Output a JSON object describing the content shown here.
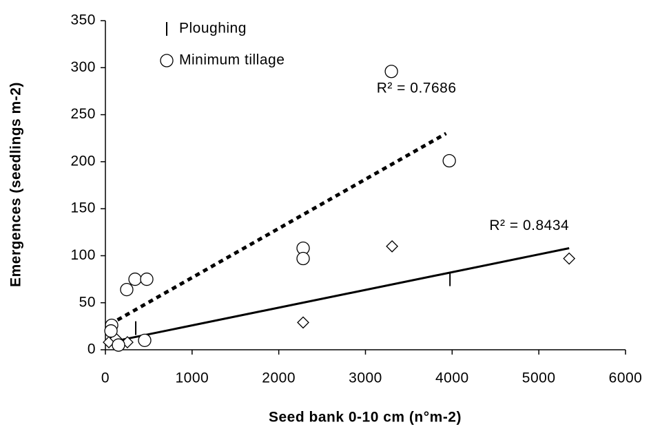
{
  "chart_data": {
    "type": "scatter",
    "x_label": "Seed bank 0-10 cm (n°m-2)",
    "y_label": "Emergences (seedlings m-2)",
    "xlim": [
      0,
      6000
    ],
    "xticks": [
      0,
      1000,
      2000,
      3000,
      4000,
      5000,
      6000
    ],
    "ylim": [
      0,
      350
    ],
    "yticks": [
      0,
      50,
      100,
      150,
      200,
      250,
      300,
      350
    ],
    "grid": false,
    "legend": "top-left",
    "series": [
      {
        "name": "Ploughing",
        "color": "#000000",
        "legend_marker": "tick",
        "x": [
          40,
          120,
          254,
          350,
          2281,
          3307,
          3975,
          5350
        ],
        "values": [
          8,
          12,
          8,
          23,
          29,
          110,
          75,
          97
        ],
        "markers": [
          "diamond",
          "diamond",
          "diamond",
          "tick",
          "diamond",
          "diamond",
          "tick",
          "diamond"
        ]
      },
      {
        "name": "Minimum tillage",
        "color": "#000000",
        "legend_marker": "circle",
        "x": [
          72,
          64,
          151,
          246,
          342,
          477,
          453,
          2281,
          2281,
          3299,
          3967
        ],
        "values": [
          26,
          20,
          5,
          64,
          75,
          75,
          10,
          108,
          97,
          296,
          201
        ],
        "markers": [
          "circle",
          "circle",
          "circle",
          "circle",
          "circle",
          "circle",
          "circle",
          "circle",
          "circle",
          "circle",
          "circle"
        ]
      }
    ],
    "trendlines": [
      {
        "style": "solid",
        "x": [
          50,
          5350
        ],
        "values": [
          8,
          108
        ],
        "label": "R² = 0.8434"
      },
      {
        "style": "dotted",
        "x": [
          50,
          3930
        ],
        "values": [
          27,
          230
        ],
        "label": "R² = 0.7686"
      }
    ]
  }
}
